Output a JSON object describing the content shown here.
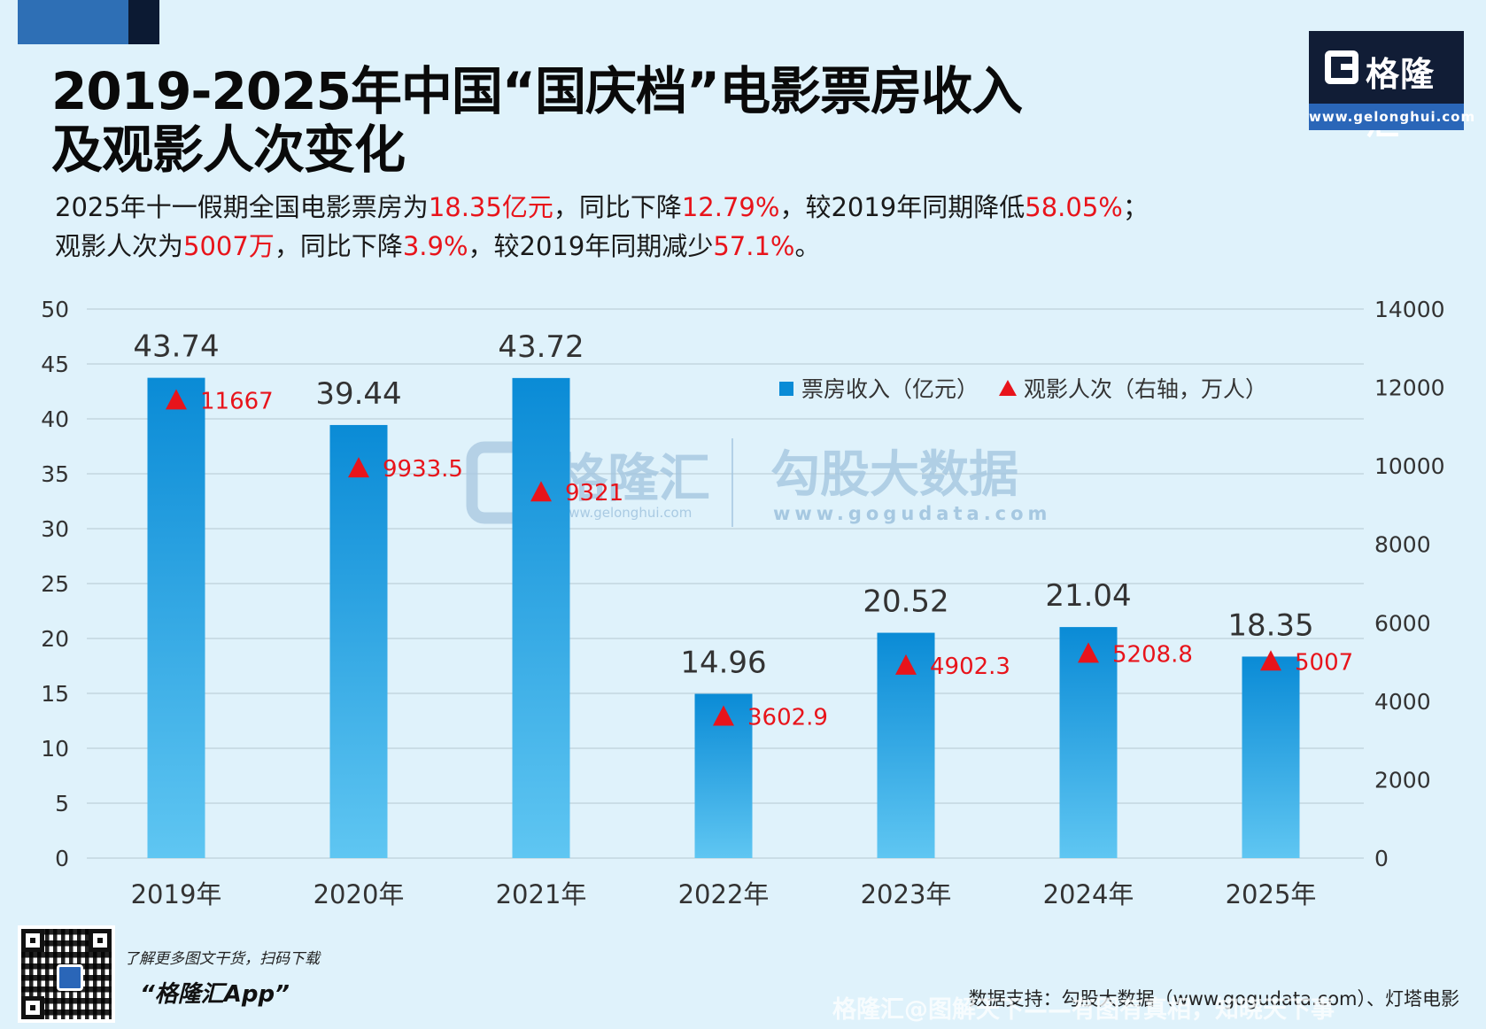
{
  "header": {
    "title_line1": "2019-2025年中国“国庆档”电影票房收入",
    "title_line2": "及观影人次变化"
  },
  "subtitle": {
    "line1": {
      "p1": "2025年十一假期全国电影票房为",
      "v1": "18.35亿元",
      "p2": "，同比下降",
      "v2": "12.79%",
      "p3": "，较2019年同期降低",
      "v3": "58.05%",
      "p4": "；"
    },
    "line2": {
      "p1": "观影人次为",
      "v1": "5007万",
      "p2": "，同比下降",
      "v2": "3.9%",
      "p3": "，较2019年同期减少",
      "v3": "57.1%",
      "p4": "。"
    }
  },
  "logo": {
    "name": "格隆汇",
    "url": "www.gelonghui.com"
  },
  "chart_data": {
    "type": "bar",
    "categories": [
      "2019年",
      "2020年",
      "2021年",
      "2022年",
      "2023年",
      "2024年",
      "2025年"
    ],
    "series": [
      {
        "name": "票房收入（亿元）",
        "type": "bar",
        "axis": "left",
        "values": [
          43.74,
          39.44,
          43.72,
          14.96,
          20.52,
          21.04,
          18.35
        ],
        "labels": [
          "43.74",
          "39.44",
          "43.72",
          "14.96",
          "20.52",
          "21.04",
          "18.35"
        ]
      },
      {
        "name": "观影人次（右轴，万人）",
        "type": "scatter",
        "marker": "triangle",
        "axis": "right",
        "values": [
          11667,
          9933.5,
          9321,
          3602.9,
          4902.3,
          5208.8,
          5007
        ],
        "labels": [
          "11667",
          "9933.5",
          "9321",
          "3602.9",
          "4902.3",
          "5208.8",
          "5007"
        ]
      }
    ],
    "left_axis": {
      "ylim": [
        0,
        50
      ],
      "ticks": [
        "0",
        "5",
        "10",
        "15",
        "20",
        "25",
        "30",
        "35",
        "40",
        "45",
        "50"
      ]
    },
    "right_axis": {
      "ylim": [
        0,
        14000
      ],
      "ticks": [
        "0",
        "2000",
        "4000",
        "6000",
        "8000",
        "10000",
        "12000",
        "14000"
      ]
    },
    "grid": true,
    "legend_position": "top-right",
    "colors": {
      "bar_top": "#0a8bd6",
      "bar_bottom": "#5fc6f2",
      "marker": "#e8141b",
      "label": "#e8141b",
      "value_text": "#333333"
    },
    "watermark": {
      "left_name": "格隆汇",
      "left_url": "www.gelonghui.com",
      "right_name": "勾股大数据",
      "right_url": "www.gogudata.com"
    }
  },
  "footer": {
    "qr_caption": "了解更多图文干货，扫码下载",
    "app_name": "“格隆汇App”",
    "source": "数据支持：勾股大数据（www.gogudata.com）、灯塔电影",
    "watermark": "格隆汇@图解天下——有图有真相，知晓天下事"
  }
}
